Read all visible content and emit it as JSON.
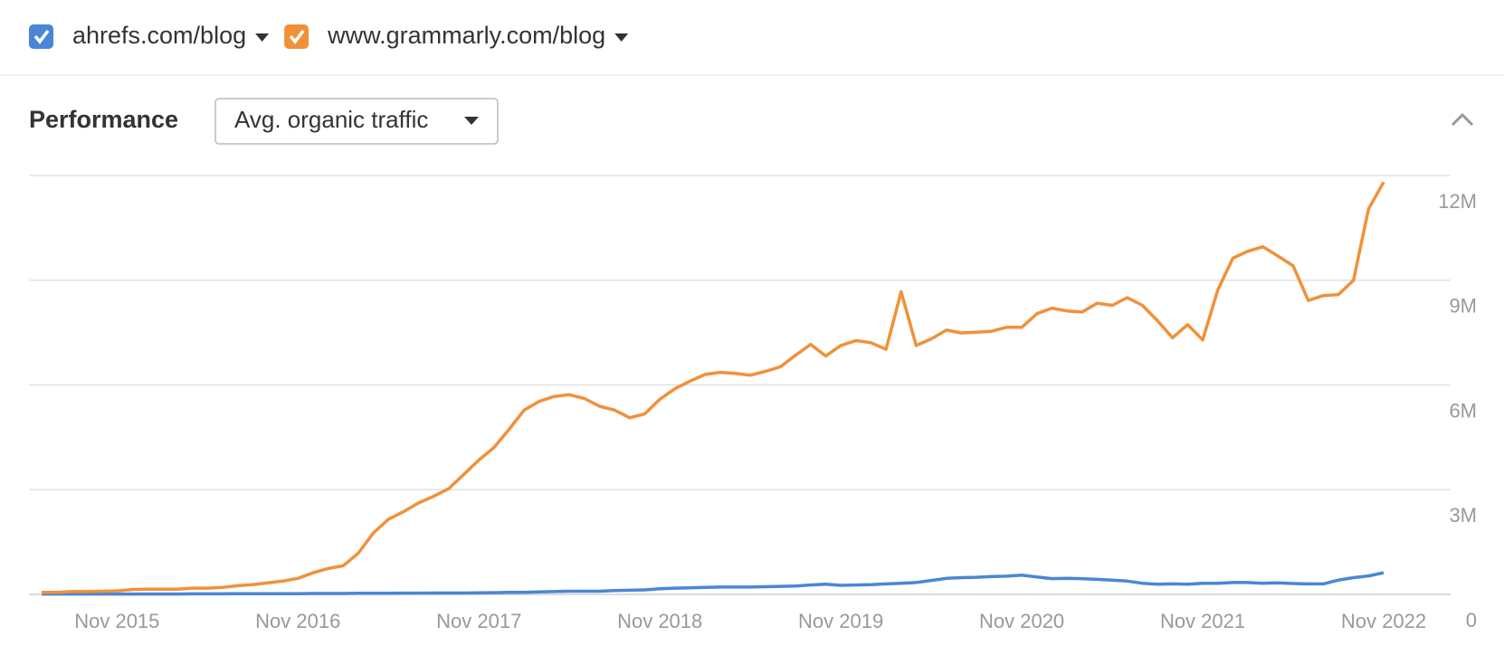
{
  "chart_data": {
    "type": "line",
    "title": "Performance",
    "dropdown": "Avg. organic traffic",
    "categories": [
      null,
      null,
      null,
      null,
      null,
      "Nov 2015",
      null,
      null,
      null,
      null,
      null,
      null,
      null,
      null,
      null,
      null,
      null,
      "Nov 2016",
      null,
      null,
      null,
      null,
      null,
      null,
      null,
      null,
      null,
      null,
      null,
      "Nov 2017",
      null,
      null,
      null,
      null,
      null,
      null,
      null,
      null,
      null,
      null,
      null,
      "Nov 2018",
      null,
      null,
      null,
      null,
      null,
      null,
      null,
      null,
      null,
      null,
      null,
      "Nov 2019",
      null,
      null,
      null,
      null,
      null,
      null,
      null,
      null,
      null,
      null,
      null,
      "Nov 2020",
      null,
      null,
      null,
      null,
      null,
      null,
      null,
      null,
      null,
      null,
      null,
      "Nov 2021",
      null,
      null,
      null,
      null,
      null,
      null,
      null,
      null,
      null,
      null,
      null,
      "Nov 2022"
    ],
    "series": [
      {
        "name": "ahrefs.com/blog",
        "color": "#4a86d8",
        "values": [
          10000,
          10000,
          10000,
          10000,
          10000,
          10000,
          10000,
          10000,
          10000,
          10000,
          15000,
          15000,
          15000,
          20000,
          20000,
          20000,
          20000,
          20000,
          25000,
          25000,
          25000,
          30000,
          30000,
          30000,
          35000,
          35000,
          40000,
          40000,
          40000,
          45000,
          50000,
          60000,
          60000,
          70000,
          80000,
          90000,
          90000,
          90000,
          110000,
          120000,
          130000,
          160000,
          180000,
          190000,
          200000,
          210000,
          210000,
          210000,
          220000,
          230000,
          240000,
          270000,
          290000,
          260000,
          270000,
          280000,
          300000,
          320000,
          340000,
          400000,
          460000,
          480000,
          490000,
          510000,
          520000,
          550000,
          500000,
          450000,
          460000,
          450000,
          430000,
          410000,
          380000,
          320000,
          290000,
          300000,
          290000,
          320000,
          320000,
          340000,
          340000,
          320000,
          330000,
          310000,
          300000,
          300000,
          410000,
          480000,
          530000,
          620000
        ]
      },
      {
        "name": "www.grammarly.com/blog",
        "color": "#f0913a",
        "values": [
          60000,
          60000,
          80000,
          80000,
          90000,
          100000,
          140000,
          150000,
          150000,
          150000,
          180000,
          180000,
          200000,
          250000,
          280000,
          330000,
          380000,
          460000,
          620000,
          740000,
          820000,
          1180000,
          1760000,
          2150000,
          2370000,
          2620000,
          2810000,
          3030000,
          3440000,
          3850000,
          4210000,
          4730000,
          5280000,
          5530000,
          5670000,
          5720000,
          5610000,
          5390000,
          5280000,
          5060000,
          5170000,
          5590000,
          5890000,
          6110000,
          6300000,
          6360000,
          6330000,
          6280000,
          6390000,
          6520000,
          6850000,
          7160000,
          6830000,
          7130000,
          7270000,
          7210000,
          7020000,
          8670000,
          7130000,
          7320000,
          7570000,
          7490000,
          7510000,
          7540000,
          7650000,
          7650000,
          8040000,
          8200000,
          8120000,
          8090000,
          8340000,
          8280000,
          8500000,
          8280000,
          7840000,
          7350000,
          7730000,
          7290000,
          8720000,
          9630000,
          9830000,
          9960000,
          9690000,
          9410000,
          8420000,
          8560000,
          8590000,
          9000000,
          11040000,
          11810000
        ]
      }
    ],
    "ylim": [
      0,
      12000000
    ],
    "yticks": [
      0,
      {
        "value": 3000000,
        "label": "3M"
      },
      {
        "value": 6000000,
        "label": "6M"
      },
      {
        "value": 9000000,
        "label": "9M"
      },
      {
        "value": 12000000,
        "label": "12M"
      }
    ],
    "grid": true
  }
}
